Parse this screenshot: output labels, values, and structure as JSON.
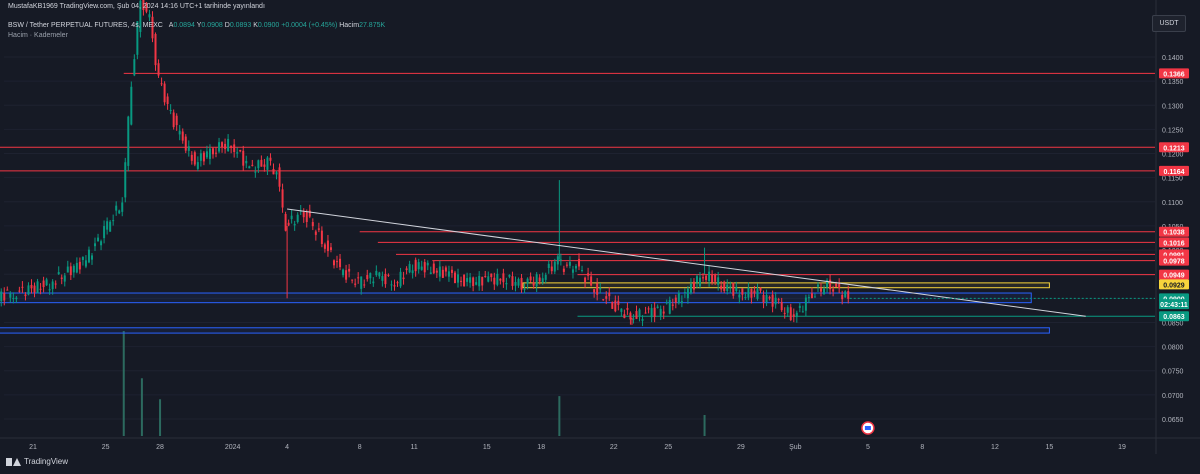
{
  "header": {
    "publish_line": "MustafaKB1969 TradingView.com, Şub 04, 2024 14:16 UTC+1 tarihinde yayınlandı",
    "symbol": "BSW / Tether PERPETUAL FUTURES, 4s, MEXC",
    "ohlc": {
      "open_label": "A",
      "open_value": "0.0894",
      "high_label": "Y",
      "high_value": "0.0908",
      "low_label": "D",
      "low_value": "0.0893",
      "close_label": "K",
      "close_value": "0.0900",
      "change": "+0.0004 (+0.45%)",
      "volume_label": "Hacim",
      "volume_value": "27.875K"
    },
    "indicator_line": "Hacim · Kademeler"
  },
  "currency_badge": "USDT",
  "price_axis": {
    "ticks": [
      "0.1400",
      "0.1350",
      "0.1300",
      "0.1250",
      "0.1200",
      "0.1150",
      "0.1100",
      "0.1050",
      "0.1000",
      "0.0950",
      "0.0900",
      "0.0850",
      "0.0800",
      "0.0750",
      "0.0700",
      "0.0650"
    ]
  },
  "time_axis": {
    "labels": [
      "21",
      "25",
      "28",
      "2024",
      "4",
      "8",
      "11",
      "15",
      "18",
      "22",
      "25",
      "29",
      "Şub",
      "5",
      "8",
      "12",
      "15",
      "19"
    ]
  },
  "level_tags": [
    {
      "text": "0.1366",
      "price": 0.1366,
      "color": "#f23645"
    },
    {
      "text": "0.1213",
      "price": 0.1213,
      "color": "#f23645"
    },
    {
      "text": "0.1164",
      "price": 0.1164,
      "color": "#f23645"
    },
    {
      "text": "0.1038",
      "price": 0.1038,
      "color": "#f23645"
    },
    {
      "text": "0.1016",
      "price": 0.1016,
      "color": "#f23645"
    },
    {
      "text": "0.0991",
      "price": 0.0991,
      "color": "#f23645"
    },
    {
      "text": "0.0978",
      "price": 0.0978,
      "color": "#f23645"
    },
    {
      "text": "0.0949",
      "price": 0.0949,
      "color": "#f23645"
    },
    {
      "text": "0.0929",
      "price": 0.0929,
      "color": "#f7d43c"
    },
    {
      "text": "0.0900",
      "price": 0.09,
      "color": "#089981"
    },
    {
      "text": "02:43:11",
      "price": 0.0888,
      "color": "#089981"
    },
    {
      "text": "0.0863",
      "price": 0.0863,
      "color": "#089981"
    }
  ],
  "horizontal_levels": [
    {
      "price": 0.1366,
      "start": "Dec 26",
      "color": "#f23645"
    },
    {
      "price": 0.1213,
      "start": "Dec 18",
      "color": "#f23645"
    },
    {
      "price": 0.1164,
      "start": "Dec 18",
      "color": "#f23645"
    },
    {
      "price": 0.1038,
      "start": "Jan 08",
      "color": "#f23645"
    },
    {
      "price": 0.1016,
      "start": "Jan 09",
      "color": "#f23645"
    },
    {
      "price": 0.0991,
      "start": "Jan 10",
      "color": "#f23645"
    },
    {
      "price": 0.0978,
      "start": "Jan 12",
      "color": "#f23645"
    },
    {
      "price": 0.0949,
      "start": "Jan 20",
      "color": "#f23645"
    }
  ],
  "zones": [
    {
      "name": "yellow-zone",
      "top": 0.0932,
      "bottom": 0.0922,
      "start": "Jan 17",
      "end": "Feb 15",
      "color": "#f7d43c"
    },
    {
      "name": "blue-zone-upper",
      "top": 0.0911,
      "bottom": 0.0891,
      "start": "Dec 18",
      "end": "Feb 14",
      "color": "#2962ff"
    },
    {
      "name": "blue-zone-lower",
      "top": 0.0839,
      "bottom": 0.0828,
      "start": "Dec 18",
      "end": "Feb 15",
      "color": "#2962ff"
    }
  ],
  "green_line": {
    "price": 0.0863,
    "start": "Jan 20",
    "color": "#089981"
  },
  "trendline": {
    "start": "Jan 04",
    "start_price": 0.1085,
    "end": "Feb 17",
    "end_price": 0.0863
  },
  "price_path": [
    [
      "Dec 18",
      0.09
    ],
    [
      "Dec 20",
      0.091
    ],
    [
      "Dec 22",
      0.093
    ],
    [
      "Dec 24",
      0.098
    ],
    [
      "Dec 25",
      0.104
    ],
    [
      "Dec 26",
      0.11
    ],
    [
      "Dec 26.5",
      0.135
    ],
    [
      "Dec 27",
      0.152
    ],
    [
      "Dec 27.5",
      0.148
    ],
    [
      "Dec 28",
      0.135
    ],
    [
      "Dec 29",
      0.125
    ],
    [
      "Dec 30",
      0.118
    ],
    [
      "Dec 31",
      0.121
    ],
    [
      "Jan 01",
      0.122
    ],
    [
      "Jan 02",
      0.117
    ],
    [
      "Jan 03",
      0.118
    ],
    [
      "Jan 03.5",
      0.116
    ],
    [
      "Jan 04",
      0.105
    ],
    [
      "Jan 05",
      0.108
    ],
    [
      "Jan 06",
      0.102
    ],
    [
      "Jan 07",
      0.096
    ],
    [
      "Jan 08",
      0.093
    ],
    [
      "Jan 09",
      0.095
    ],
    [
      "Jan 10",
      0.093
    ],
    [
      "Jan 11",
      0.097
    ],
    [
      "Jan 12",
      0.096
    ],
    [
      "Jan 13",
      0.095
    ],
    [
      "Jan 14",
      0.093
    ],
    [
      "Jan 15",
      0.094
    ],
    [
      "Jan 16",
      0.094
    ],
    [
      "Jan 17",
      0.093
    ],
    [
      "Jan 18",
      0.094
    ],
    [
      "Jan 19",
      0.098
    ],
    [
      "Jan 19.5",
      0.096
    ],
    [
      "Jan 20",
      0.097
    ],
    [
      "Jan 21",
      0.092
    ],
    [
      "Jan 22",
      0.089
    ],
    [
      "Jan 23",
      0.086
    ],
    [
      "Jan 24",
      0.087
    ],
    [
      "Jan 25",
      0.088
    ],
    [
      "Jan 26",
      0.091
    ],
    [
      "Jan 27",
      0.095
    ],
    [
      "Jan 28",
      0.093
    ],
    [
      "Jan 29",
      0.091
    ],
    [
      "Jan 30",
      0.091
    ],
    [
      "Jan 31",
      0.089
    ],
    [
      "Feb 01",
      0.086
    ],
    [
      "Feb 02",
      0.091
    ],
    [
      "Feb 03",
      0.093
    ],
    [
      "Feb 04",
      0.09
    ]
  ],
  "wicks": [
    {
      "date": "Dec 27",
      "high": 0.158
    },
    {
      "date": "Jan 04",
      "low": 0.09
    },
    {
      "date": "Jan 19",
      "high": 0.1145
    },
    {
      "date": "Jan 23",
      "low": 0.0845
    },
    {
      "date": "Jan 27",
      "high": 0.1005
    }
  ],
  "volume_bars": [
    {
      "date": "Dec 26",
      "value": 1.0
    },
    {
      "date": "Dec 27",
      "value": 0.55
    },
    {
      "date": "Dec 28",
      "value": 0.35
    },
    {
      "date": "Jan 19",
      "value": 0.38
    },
    {
      "date": "Jan 27",
      "value": 0.2
    }
  ],
  "event_marker": {
    "date": "Feb 05",
    "label": "earnings-flag-icon"
  }
}
